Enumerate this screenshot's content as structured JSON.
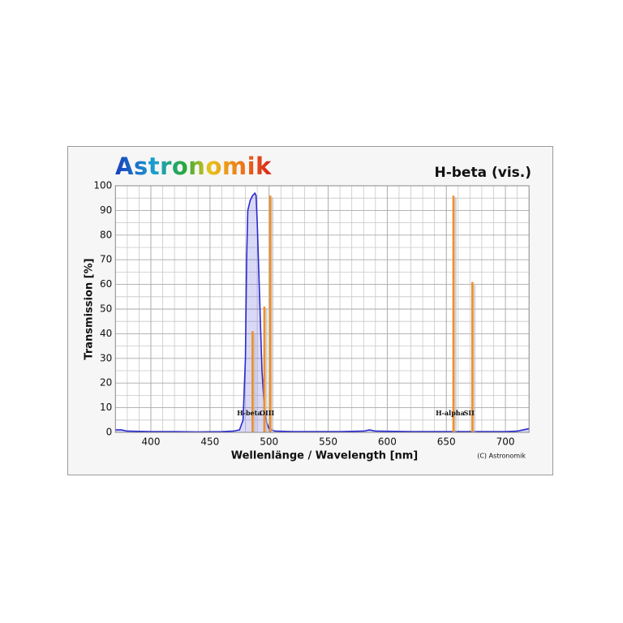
{
  "chart_data": {
    "type": "line",
    "logo": "Astronomik",
    "title": "H-beta (vis.)",
    "x_label": "Wellenlänge / Wavelength [nm]",
    "y_label": "Transmission [%]",
    "copyright": "(C) Astronomik",
    "xlim": [
      370,
      720
    ],
    "ylim": [
      0,
      100
    ],
    "xticks": [
      400,
      450,
      500,
      550,
      600,
      650,
      700
    ],
    "yticks": [
      0,
      10,
      20,
      30,
      40,
      50,
      60,
      70,
      80,
      90,
      100
    ],
    "grid": true,
    "series": [
      {
        "color": "#2a2ad0",
        "x": [
          370,
          375,
          380,
          400,
          420,
          440,
          460,
          470,
          475,
          478,
          480,
          481,
          482,
          484,
          486,
          488,
          489,
          490,
          492,
          494,
          496,
          498,
          500,
          505,
          520,
          560,
          580,
          585,
          590,
          620,
          680,
          700,
          710,
          715,
          720
        ],
        "values": [
          1,
          1,
          0.5,
          0.3,
          0.3,
          0.2,
          0.3,
          0.5,
          1,
          5,
          30,
          70,
          90,
          94,
          96,
          97,
          96,
          85,
          55,
          25,
          10,
          4,
          1.5,
          0.5,
          0.3,
          0.3,
          0.5,
          1,
          0.5,
          0.3,
          0.3,
          0.3,
          0.5,
          1,
          1.5
        ]
      }
    ],
    "emission_lines": {
      "color": "#f0902a",
      "names": [
        "H-beta",
        null,
        "OIII",
        "H-alpha",
        "SII"
      ],
      "x": [
        486,
        496,
        501,
        656,
        672
      ],
      "values": [
        41,
        51,
        96,
        96,
        61
      ]
    }
  }
}
